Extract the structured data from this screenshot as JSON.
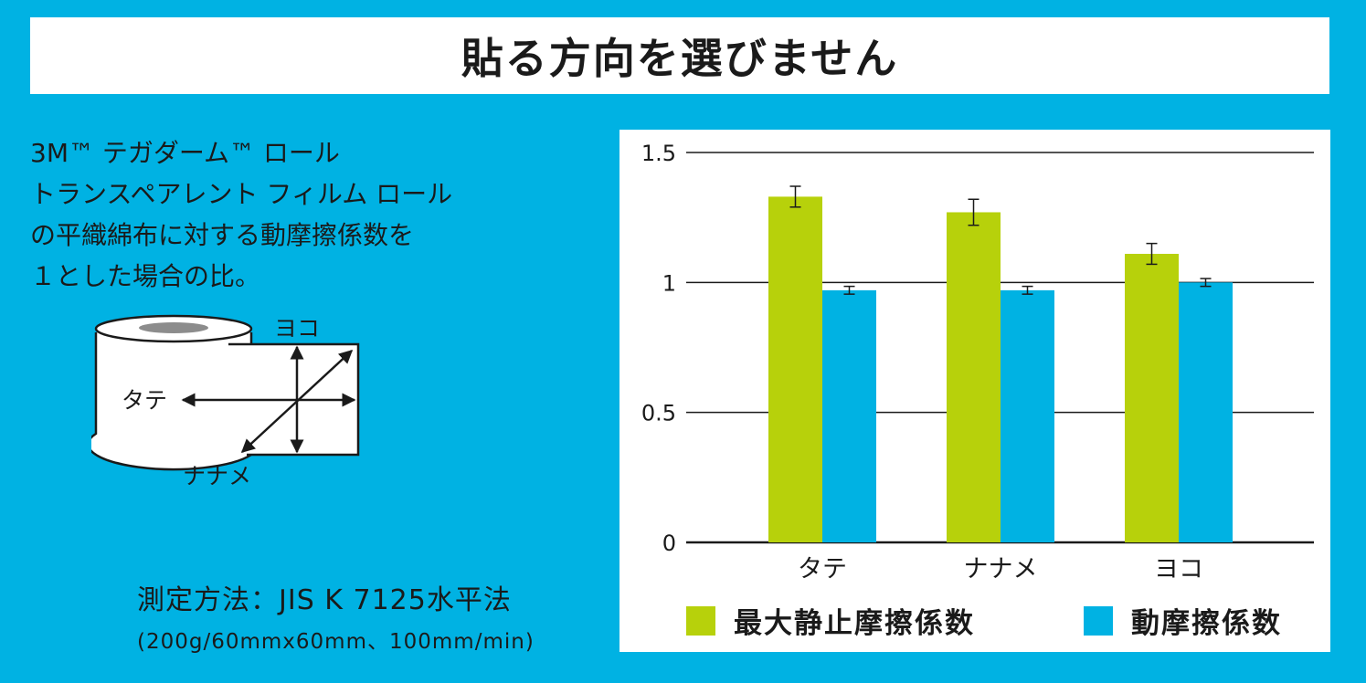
{
  "title": "貼る方向を選びません",
  "description": [
    "3M™ テガダーム™ ロール",
    "トランスペアレント フィルム ロール",
    "の平織綿布に対する動摩擦係数を",
    "１とした場合の比。"
  ],
  "diagram": {
    "label_yoko": "ヨコ",
    "label_tate": "タテ",
    "label_naname": "ナナメ"
  },
  "method": {
    "main": "測定方法：JIS K 7125水平法",
    "sub": "(200g/60mmx60mm、100mm/min)"
  },
  "colors": {
    "background": "#00b2e3",
    "static": "#b7d10b",
    "kinetic": "#00b2e3"
  },
  "chart_data": {
    "type": "bar",
    "categories": [
      "タテ",
      "ナナメ",
      "ヨコ"
    ],
    "series": [
      {
        "name": "最大静止摩擦係数",
        "values": [
          1.33,
          1.27,
          1.11
        ],
        "errors": [
          0.04,
          0.05,
          0.04
        ],
        "color": "#b7d10b"
      },
      {
        "name": "動摩擦係数",
        "values": [
          0.97,
          0.97,
          1.0
        ],
        "errors": [
          0.015,
          0.015,
          0.015
        ],
        "color": "#00b2e3"
      }
    ],
    "ylim": [
      0,
      1.5
    ],
    "yticks": [
      "0",
      "0.5",
      "1",
      "1.5"
    ],
    "grid": true,
    "legend_position": "bottom"
  }
}
